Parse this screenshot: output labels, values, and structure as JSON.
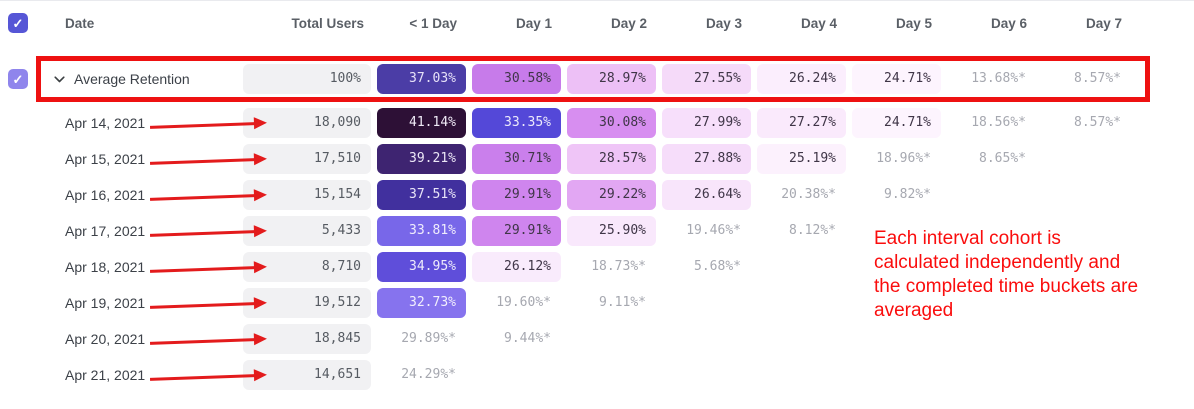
{
  "table": {
    "columns": [
      "Date",
      "Total Users",
      "< 1 Day",
      "Day 1",
      "Day 2",
      "Day 3",
      "Day 4",
      "Day 5",
      "Day 6",
      "Day 7"
    ],
    "rows": [
      {
        "label": "Average Retention",
        "total": "100%",
        "checkbox": true,
        "chevron": true,
        "highlight": true,
        "cells": [
          {
            "v": "37.03%",
            "bg": "#4b3da6",
            "fg": "#e6e1f8"
          },
          {
            "v": "30.58%",
            "bg": "#c77bea",
            "fg": "#3f3547"
          },
          {
            "v": "28.97%",
            "bg": "#edc0f6",
            "fg": "#3f3547"
          },
          {
            "v": "27.55%",
            "bg": "#f5daf9",
            "fg": "#3f3547"
          },
          {
            "v": "26.24%",
            "bg": "#fbeefd",
            "fg": "#3f3547"
          },
          {
            "v": "24.71%",
            "bg": "#fdf4fe",
            "fg": "#3f3547"
          },
          {
            "v": "13.68%*",
            "muted": true
          },
          {
            "v": "8.57%*",
            "muted": true
          }
        ]
      },
      {
        "label": "Apr 14, 2021",
        "total": "18,090",
        "arrow": true,
        "cells": [
          {
            "v": "41.14%",
            "bg": "#2d1036",
            "fg": "#f0eaf7"
          },
          {
            "v": "33.35%",
            "bg": "#5448d8",
            "fg": "#eceafb"
          },
          {
            "v": "30.08%",
            "bg": "#d78ef0",
            "fg": "#3f3547"
          },
          {
            "v": "27.99%",
            "bg": "#f7dffb",
            "fg": "#3f3547"
          },
          {
            "v": "27.27%",
            "bg": "#faeafc",
            "fg": "#3f3547"
          },
          {
            "v": "24.71%",
            "bg": "#fdf4fe",
            "fg": "#3f3547"
          },
          {
            "v": "18.56%*",
            "muted": true
          },
          {
            "v": "8.57%*",
            "muted": true
          }
        ]
      },
      {
        "label": "Apr 15, 2021",
        "total": "17,510",
        "arrow": true,
        "cells": [
          {
            "v": "39.21%",
            "bg": "#3e2471",
            "fg": "#ece7f6"
          },
          {
            "v": "30.71%",
            "bg": "#ca7fec",
            "fg": "#3f3547"
          },
          {
            "v": "28.57%",
            "bg": "#efc5f7",
            "fg": "#3f3547"
          },
          {
            "v": "27.88%",
            "bg": "#f6ddfa",
            "fg": "#3f3547"
          },
          {
            "v": "25.19%",
            "bg": "#fcf1fd",
            "fg": "#3f3547"
          },
          {
            "v": "18.96%*",
            "muted": true
          },
          {
            "v": "8.65%*",
            "muted": true
          }
        ]
      },
      {
        "label": "Apr 16, 2021",
        "total": "15,154",
        "arrow": true,
        "cells": [
          {
            "v": "37.51%",
            "bg": "#41309e",
            "fg": "#e9e5f8"
          },
          {
            "v": "29.91%",
            "bg": "#cf85ee",
            "fg": "#3f3547"
          },
          {
            "v": "29.22%",
            "bg": "#e2a7f3",
            "fg": "#3f3547"
          },
          {
            "v": "26.64%",
            "bg": "#f8e5fb",
            "fg": "#3f3547"
          },
          {
            "v": "20.38%*",
            "muted": true
          },
          {
            "v": "9.82%*",
            "muted": true
          }
        ]
      },
      {
        "label": "Apr 17, 2021",
        "total": "5,433",
        "arrow": true,
        "cells": [
          {
            "v": "33.81%",
            "bg": "#7867e9",
            "fg": "#f0edfc"
          },
          {
            "v": "29.91%",
            "bg": "#cf85ee",
            "fg": "#3f3547"
          },
          {
            "v": "25.90%",
            "bg": "#f9e8fc",
            "fg": "#3f3547"
          },
          {
            "v": "19.46%*",
            "muted": true
          },
          {
            "v": "8.12%*",
            "muted": true
          }
        ]
      },
      {
        "label": "Apr 18, 2021",
        "total": "8,710",
        "arrow": true,
        "cells": [
          {
            "v": "34.95%",
            "bg": "#5f4eda",
            "fg": "#eeebfb"
          },
          {
            "v": "26.12%",
            "bg": "#f9ebfc",
            "fg": "#3f3547"
          },
          {
            "v": "18.73%*",
            "muted": true
          },
          {
            "v": "5.68%*",
            "muted": true
          }
        ]
      },
      {
        "label": "Apr 19, 2021",
        "total": "19,512",
        "arrow": true,
        "cells": [
          {
            "v": "32.73%",
            "bg": "#8673ee",
            "fg": "#f2effd"
          },
          {
            "v": "19.60%*",
            "muted": true
          },
          {
            "v": "9.11%*",
            "muted": true
          }
        ]
      },
      {
        "label": "Apr 20, 2021",
        "total": "18,845",
        "arrow": true,
        "cells": [
          {
            "v": "29.89%*",
            "muted": true
          },
          {
            "v": "9.44%*",
            "muted": true
          }
        ]
      },
      {
        "label": "Apr 21, 2021",
        "total": "14,651",
        "arrow": true,
        "cells": [
          {
            "v": "24.29%*",
            "muted": true
          }
        ]
      }
    ]
  },
  "annotation": {
    "lines": [
      "Each interval cohort is",
      "calculated independently and",
      "the completed time buckets are",
      "averaged"
    ],
    "color": "#fa0d0d"
  },
  "icons": {
    "check": "✓"
  },
  "accents": {
    "highlight_border": "#ee1111",
    "arrow": "#e31b1c",
    "checkbox_header": "#5656d6",
    "checkbox_row": "#8f85ec"
  }
}
